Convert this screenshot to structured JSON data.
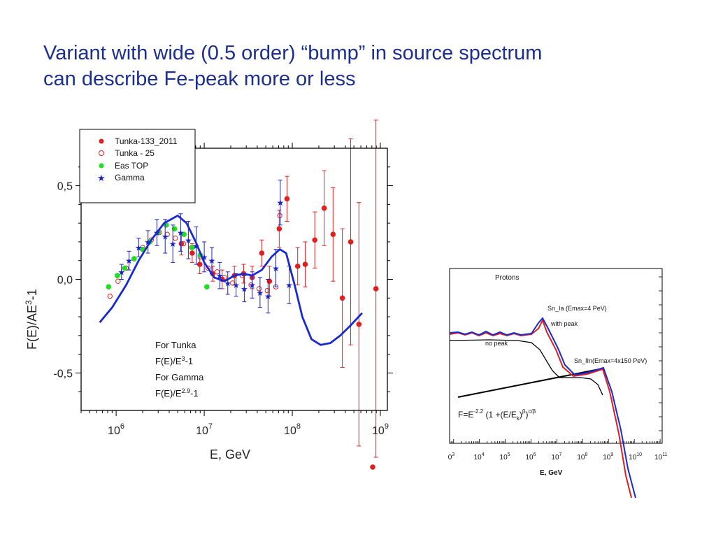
{
  "slide": {
    "title_line1": "Variant with  wide (0.5 order) “bump” in source spectrum",
    "title_line2": "can  describe Fe-peak more or less"
  },
  "colors": {
    "title": "#1c2f8f",
    "tunka133": "#e02020",
    "easTop": "#22dd22",
    "gamma": "#1a22c8",
    "model": "#1a2ad0"
  },
  "chart_data": [
    {
      "type": "scatter",
      "xlabel": "E, GeV",
      "ylabel": "F(E)/AE3-1",
      "ylabel_parts": {
        "base": "F(E)/AE",
        "sup": "3",
        "tail": "-1"
      },
      "x_scale": "log",
      "xlim": [
        400000,
        1200000000
      ],
      "ylim": [
        -0.7,
        0.7
      ],
      "x_tick_labels": [
        {
          "value": 1000000,
          "base": "10",
          "exp": "6"
        },
        {
          "value": 10000000,
          "base": "10",
          "exp": "7"
        },
        {
          "value": 100000000,
          "base": "10",
          "exp": "8"
        },
        {
          "value": 1000000000,
          "base": "10",
          "exp": "9"
        }
      ],
      "y_ticks": [
        {
          "value": 0.5,
          "label": "0,5"
        },
        {
          "value": 0.0,
          "label": "0,0"
        },
        {
          "value": -0.5,
          "label": "-0,5"
        }
      ],
      "legend": {
        "position": "top-left",
        "entries": [
          {
            "label": "Tunka-133_2011",
            "marker": "filled-circle",
            "color": "#e02020"
          },
          {
            "label": "Tunka - 25",
            "marker": "open-circle",
            "color": "#e02020"
          },
          {
            "label": "Eas TOP",
            "marker": "filled-circle",
            "color": "#22dd22"
          },
          {
            "label": "Gamma",
            "marker": "star",
            "color": "#1a22c8"
          }
        ]
      },
      "annotation": {
        "line1": "For Tunka",
        "line2_base": "F(E)/E",
        "line2_sup": "3",
        "line2_tail": "-1",
        "line3": "For Gamma",
        "line4_base": "F(E)/E",
        "line4_sup": "2.9",
        "line4_tail": "-1"
      },
      "series": [
        {
          "name": "Tunka-133_2011",
          "marker": "filled-circle",
          "color": "#e02020",
          "points": [
            {
              "x": 5500000,
              "y": 0.19,
              "err": 0.06
            },
            {
              "x": 7300000,
              "y": 0.14,
              "err": 0.05
            },
            {
              "x": 8900000,
              "y": 0.08,
              "err": 0.05
            },
            {
              "x": 12500000,
              "y": 0.03,
              "err": 0.04
            },
            {
              "x": 16000000,
              "y": 0.0,
              "err": 0.05
            },
            {
              "x": 22000000,
              "y": 0.02,
              "err": 0.05
            },
            {
              "x": 28000000,
              "y": 0.03,
              "err": 0.05
            },
            {
              "x": 35000000,
              "y": 0.01,
              "err": 0.06
            },
            {
              "x": 45000000,
              "y": 0.14,
              "err": 0.07
            },
            {
              "x": 55000000,
              "y": -0.01,
              "err": 0.08
            },
            {
              "x": 71000000,
              "y": 0.27,
              "err": 0.1
            },
            {
              "x": 87000000,
              "y": 0.43,
              "err": 0.12
            },
            {
              "x": 115000000,
              "y": 0.07,
              "err": 0.1
            },
            {
              "x": 140000000,
              "y": 0.08,
              "err": 0.12
            },
            {
              "x": 180000000,
              "y": 0.21,
              "err": 0.15
            },
            {
              "x": 230000000,
              "y": 0.38,
              "err": 0.2
            },
            {
              "x": 290000000,
              "y": 0.24,
              "err": 0.25
            },
            {
              "x": 370000000,
              "y": -0.1,
              "err": 0.37
            },
            {
              "x": 460000000,
              "y": 0.2,
              "err": 0.55
            },
            {
              "x": 570000000,
              "y": -0.24,
              "err": 0.65
            },
            {
              "x": 890000000,
              "y": -0.05,
              "err": 0.9
            }
          ]
        },
        {
          "name": "Tunka - 25",
          "marker": "open-circle",
          "color": "#e02020",
          "points": [
            {
              "x": 850000,
              "y": -0.09
            },
            {
              "x": 1050000,
              "y": -0.01
            },
            {
              "x": 1300000,
              "y": 0.06
            },
            {
              "x": 1600000,
              "y": 0.11
            },
            {
              "x": 2000000,
              "y": 0.17
            },
            {
              "x": 2500000,
              "y": 0.21
            },
            {
              "x": 3100000,
              "y": 0.25
            },
            {
              "x": 3800000,
              "y": 0.24
            },
            {
              "x": 4700000,
              "y": 0.22
            },
            {
              "x": 5800000,
              "y": 0.19
            },
            {
              "x": 7200000,
              "y": 0.17
            },
            {
              "x": 9000000,
              "y": 0.12
            },
            {
              "x": 11000000,
              "y": 0.06
            },
            {
              "x": 14000000,
              "y": 0.04
            },
            {
              "x": 17000000,
              "y": 0.01
            },
            {
              "x": 21000000,
              "y": -0.02
            },
            {
              "x": 27000000,
              "y": 0.02
            },
            {
              "x": 34000000,
              "y": -0.03
            },
            {
              "x": 42000000,
              "y": -0.05
            },
            {
              "x": 52000000,
              "y": -0.06
            },
            {
              "x": 65000000,
              "y": -0.04
            },
            {
              "x": 72000000,
              "y": 0.34
            }
          ]
        },
        {
          "name": "Eas TOP",
          "marker": "filled-circle",
          "color": "#22dd22",
          "points": [
            {
              "x": 820000,
              "y": -0.04
            },
            {
              "x": 1030000,
              "y": 0.02
            },
            {
              "x": 1250000,
              "y": 0.06
            },
            {
              "x": 1600000,
              "y": 0.11
            },
            {
              "x": 2000000,
              "y": 0.16
            },
            {
              "x": 2400000,
              "y": 0.2
            },
            {
              "x": 3000000,
              "y": 0.25
            },
            {
              "x": 3700000,
              "y": 0.29
            },
            {
              "x": 4600000,
              "y": 0.27
            },
            {
              "x": 5900000,
              "y": 0.24
            },
            {
              "x": 7300000,
              "y": 0.17
            },
            {
              "x": 9000000,
              "y": 0.13
            },
            {
              "x": 10700000,
              "y": -0.04
            }
          ]
        },
        {
          "name": "Gamma",
          "marker": "star",
          "color": "#1a22c8",
          "points": [
            {
              "x": 1150000,
              "y": 0.04,
              "err": 0.04
            },
            {
              "x": 1400000,
              "y": 0.1,
              "err": 0.05
            },
            {
              "x": 1800000,
              "y": 0.17,
              "err": 0.05
            },
            {
              "x": 2300000,
              "y": 0.2,
              "err": 0.06
            },
            {
              "x": 2900000,
              "y": 0.25,
              "err": 0.07
            },
            {
              "x": 3600000,
              "y": 0.23,
              "err": 0.09
            },
            {
              "x": 4400000,
              "y": 0.19,
              "err": 0.1
            },
            {
              "x": 5400000,
              "y": 0.25,
              "err": 0.1
            },
            {
              "x": 6600000,
              "y": 0.21,
              "err": 0.1
            },
            {
              "x": 8100000,
              "y": 0.18,
              "err": 0.1
            },
            {
              "x": 10000000,
              "y": 0.12,
              "err": 0.08
            },
            {
              "x": 12200000,
              "y": 0.1,
              "err": 0.07
            },
            {
              "x": 15000000,
              "y": 0.02,
              "err": 0.07
            },
            {
              "x": 18500000,
              "y": -0.02,
              "err": 0.06
            },
            {
              "x": 23000000,
              "y": -0.03,
              "err": 0.06
            },
            {
              "x": 28500000,
              "y": -0.05,
              "err": 0.07
            },
            {
              "x": 35000000,
              "y": -0.03,
              "err": 0.07
            },
            {
              "x": 43000000,
              "y": -0.07,
              "err": 0.08
            },
            {
              "x": 53000000,
              "y": -0.09,
              "err": 0.09
            },
            {
              "x": 65000000,
              "y": 0.06,
              "err": 0.1
            },
            {
              "x": 73000000,
              "y": 0.41,
              "err": 0.12
            },
            {
              "x": 92000000,
              "y": -0.03,
              "err": 0.1
            }
          ]
        },
        {
          "name": "",
          "type": "line",
          "color": "#1a2ad0",
          "points": [
            {
              "x": 650000,
              "y": -0.23
            },
            {
              "x": 900000,
              "y": -0.15
            },
            {
              "x": 1300000,
              "y": -0.03
            },
            {
              "x": 1800000,
              "y": 0.1
            },
            {
              "x": 2500000,
              "y": 0.21
            },
            {
              "x": 3500000,
              "y": 0.3
            },
            {
              "x": 5000000,
              "y": 0.34
            },
            {
              "x": 6300000,
              "y": 0.3
            },
            {
              "x": 8000000,
              "y": 0.2
            },
            {
              "x": 10000000,
              "y": 0.09
            },
            {
              "x": 13000000,
              "y": 0.01
            },
            {
              "x": 17000000,
              "y": -0.01
            },
            {
              "x": 22000000,
              "y": 0.02
            },
            {
              "x": 28000000,
              "y": 0.03
            },
            {
              "x": 35000000,
              "y": 0.02
            },
            {
              "x": 45000000,
              "y": 0.05
            },
            {
              "x": 58000000,
              "y": 0.12
            },
            {
              "x": 72000000,
              "y": 0.16
            },
            {
              "x": 85000000,
              "y": 0.14
            },
            {
              "x": 105000000,
              "y": -0.02
            },
            {
              "x": 130000000,
              "y": -0.2
            },
            {
              "x": 165000000,
              "y": -0.32
            },
            {
              "x": 210000000,
              "y": -0.35
            },
            {
              "x": 270000000,
              "y": -0.34
            },
            {
              "x": 350000000,
              "y": -0.3
            },
            {
              "x": 450000000,
              "y": -0.25
            },
            {
              "x": 620000000,
              "y": -0.18
            }
          ]
        }
      ]
    },
    {
      "type": "line",
      "xlabel": "E, GeV",
      "x_scale": "log",
      "xlim": [
        700,
        120000000000
      ],
      "ylim": [
        0,
        1
      ],
      "x_tick_labels": [
        {
          "value": 1000,
          "base": "10",
          "exp": "3",
          "label": "0",
          "exp_only": true
        },
        {
          "value": 10000,
          "base": "10",
          "exp": "4"
        },
        {
          "value": 100000,
          "base": "10",
          "exp": "5"
        },
        {
          "value": 1000000,
          "base": "10",
          "exp": "6"
        },
        {
          "value": 10000000,
          "base": "10",
          "exp": "7"
        },
        {
          "value": 100000000,
          "base": "10",
          "exp": "8"
        },
        {
          "value": 1000000000,
          "base": "10",
          "exp": "9"
        },
        {
          "value": 10000000000,
          "base": "10",
          "exp": "10"
        },
        {
          "value": 100000000000,
          "base": "10",
          "exp": "11"
        }
      ],
      "labels": {
        "protons": "Protons",
        "sn_ia": "Sn_Ia (Emax=4 PeV)",
        "with_peak": "with peak",
        "no_peak": "no peak",
        "sn_iin": "Sn_IIn(Emax=4x150 PeV)"
      },
      "formula": {
        "f": "F=E",
        "exp1": "-2.2",
        "mid": " (1 +(E/E",
        "sub": "k",
        "close": ")",
        "beta": "β",
        "close2": ")",
        "exp2": "c/β"
      },
      "series": [
        {
          "name": "",
          "color": "#e02020",
          "points": []
        },
        {
          "name": "",
          "color": "#1a2ad0",
          "points": []
        },
        {
          "name": "",
          "color": "#000000",
          "points": []
        }
      ]
    }
  ]
}
